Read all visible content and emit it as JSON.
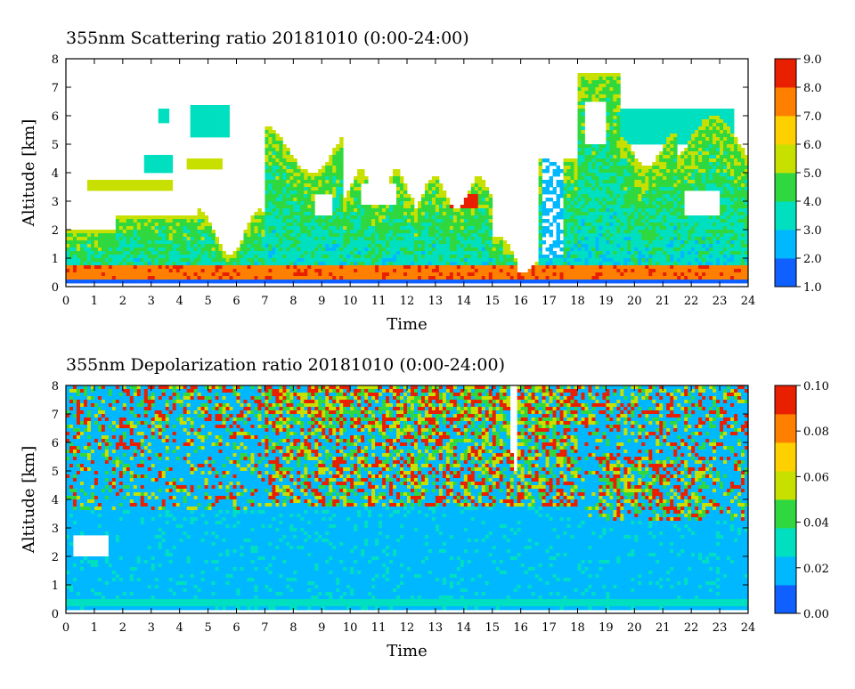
{
  "chart_data": [
    {
      "type": "heatmap",
      "title": "355nm Scattering ratio  20181010 (0:00-24:00)",
      "xlabel": "Time",
      "ylabel": "Altitude [km]",
      "xlim": [
        0,
        24
      ],
      "ylim": [
        0,
        8
      ],
      "x_ticks": [
        "0",
        "1",
        "2",
        "3",
        "4",
        "5",
        "6",
        "7",
        "8",
        "9",
        "10",
        "11",
        "12",
        "13",
        "14",
        "15",
        "16",
        "17",
        "18",
        "19",
        "20",
        "21",
        "22",
        "23",
        "24"
      ],
      "y_ticks": [
        "0",
        "1",
        "2",
        "3",
        "4",
        "5",
        "6",
        "7",
        "8"
      ],
      "colorbar": {
        "range": [
          1.0,
          9.0
        ],
        "ticks": [
          "1.0",
          "2.0",
          "3.0",
          "4.0",
          "5.0",
          "6.0",
          "7.0",
          "8.0",
          "9.0"
        ],
        "colors": [
          "#1060ff",
          "#00b8ff",
          "#00e0c0",
          "#30d840",
          "#c8e000",
          "#ffd000",
          "#ff8000",
          "#e82000"
        ]
      },
      "missing_color": "#ffffff"
    },
    {
      "type": "heatmap",
      "title": "355nm Depolarization ratio  20181010 (0:00-24:00)",
      "xlabel": "Time",
      "ylabel": "Altitude [km]",
      "xlim": [
        0,
        24
      ],
      "ylim": [
        0,
        8
      ],
      "x_ticks": [
        "0",
        "1",
        "2",
        "3",
        "4",
        "5",
        "6",
        "7",
        "8",
        "9",
        "10",
        "11",
        "12",
        "13",
        "14",
        "15",
        "16",
        "17",
        "18",
        "19",
        "20",
        "21",
        "22",
        "23",
        "24"
      ],
      "y_ticks": [
        "0",
        "1",
        "2",
        "3",
        "4",
        "5",
        "6",
        "7",
        "8"
      ],
      "colorbar": {
        "range": [
          0.0,
          0.1
        ],
        "ticks": [
          "0.00",
          "0.02",
          "0.04",
          "0.06",
          "0.08",
          "0.10"
        ],
        "colors": [
          "#1060ff",
          "#00b8ff",
          "#00e0c0",
          "#30d840",
          "#c8e000",
          "#ffd000",
          "#ff8000",
          "#e82000"
        ]
      },
      "missing_color": "#ffffff"
    }
  ]
}
